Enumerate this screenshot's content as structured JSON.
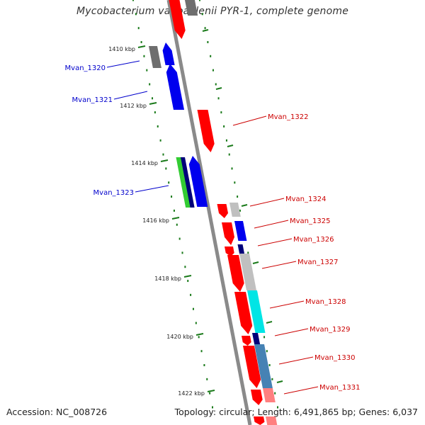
{
  "header": {
    "title": "Mycobacterium vanbaalenii PYR-1, complete genome"
  },
  "footer": {
    "accession": "Accession: NC_008726",
    "summary": "Topology: circular; Length: 6,491,865 bp; Genes: 6,037"
  },
  "ticks": [
    "1410 kbp",
    "1412 kbp",
    "1414 kbp",
    "1416 kbp",
    "1418 kbp",
    "1420 kbp",
    "1422 kbp"
  ],
  "colors": {
    "red": "#ff0000",
    "blue": "#0000ee",
    "navy": "#00007a",
    "green": "#33cc33",
    "cyan": "#00e5e5",
    "steelblue": "#4682b4",
    "pink": "#ff8080",
    "gray": "#c0c0c0",
    "darkgray": "#6e6e6e",
    "label_blue": "#0000cc",
    "label_red": "#cc0000",
    "tick_green": "#1a7a1a",
    "backbone": "#8a8a8a"
  },
  "gene_labels": [
    {
      "text": "Mvan_1320",
      "color": "label_blue"
    },
    {
      "text": "Mvan_1321",
      "color": "label_blue"
    },
    {
      "text": "Mvan_1322",
      "color": "label_red"
    },
    {
      "text": "Mvan_1323",
      "color": "label_blue"
    },
    {
      "text": "Mvan_1324",
      "color": "label_red"
    },
    {
      "text": "Mvan_1325",
      "color": "label_red"
    },
    {
      "text": "Mvan_1326",
      "color": "label_red"
    },
    {
      "text": "Mvan_1327",
      "color": "label_red"
    },
    {
      "text": "Mvan_1328",
      "color": "label_red"
    },
    {
      "text": "Mvan_1329",
      "color": "label_red"
    },
    {
      "text": "Mvan_1330",
      "color": "label_red"
    },
    {
      "text": "Mvan_1331",
      "color": "label_red"
    }
  ]
}
